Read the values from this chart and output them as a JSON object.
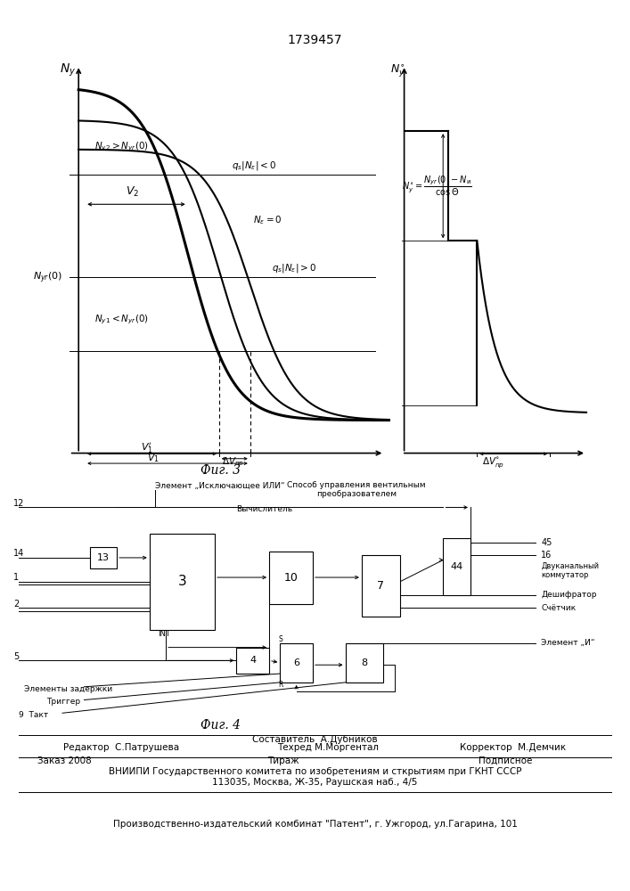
{
  "patent_number": "1739457",
  "fig3_label": "Фиг. 3",
  "fig4_label": "Фиг. 4",
  "footer_sostavitel": "Составитель  А.Дубников",
  "footer_editor": "Редактор  С.Патрушева",
  "footer_techred": "Техред М.Моргентал",
  "footer_corrector": "Корректор  М.Демчик",
  "footer_zakaz": "Заказ 2008",
  "footer_tirazh": "Тираж",
  "footer_podpisnoe": "Подписное",
  "footer_vniipи": "ВНИИПИ Государственного комитета по изобретениям и сткрытиям при ГКНТ СССР",
  "footer_address": "113035, Москва, Ж-35, Раушская наб., 4/5",
  "footer_factory": "Производственно-издательский комбинат \"Патент\", г. Ужгород, ул.Гагарина, 101",
  "label_element_ili": "Элемент „Исключающее ИЛИ“",
  "label_vychislitel": "Вычислитель",
  "label_sposob1": "Способ управления вентильным",
  "label_sposob2": "преобразователем",
  "label_dvukanal1": "Двуканальный",
  "label_dvukanal2": "коммутатор",
  "label_deshifrator": "Дешифратор",
  "label_schetchik": "Счётчик",
  "label_element_i": "Элемент „И“",
  "label_element_zad": "Элементы задержки",
  "label_trigger": "Триггер",
  "label_takt": "9  Такт"
}
